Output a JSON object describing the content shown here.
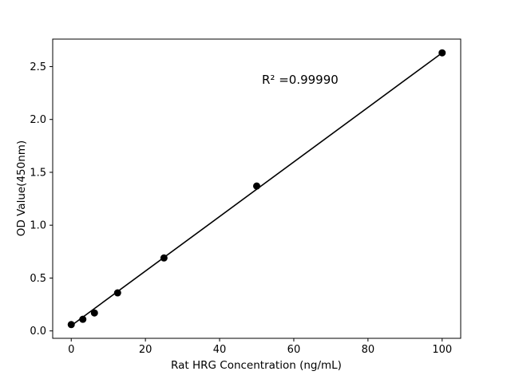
{
  "chart_data": {
    "type": "scatter",
    "title": "",
    "xlabel": "Rat HRG Concentration (ng/mL)",
    "ylabel": "OD Value(450nm)",
    "annotation": "R² =0.99990",
    "x": [
      0,
      3.125,
      6.25,
      12.5,
      25,
      50,
      100
    ],
    "y": [
      0.06,
      0.11,
      0.17,
      0.36,
      0.69,
      1.37,
      2.63
    ],
    "fit_line": {
      "x": [
        0,
        100
      ],
      "y": [
        0.05,
        2.63
      ]
    },
    "xlim": [
      -5,
      105
    ],
    "ylim": [
      -0.07,
      2.76
    ],
    "xticks": [
      0,
      20,
      40,
      60,
      80,
      100
    ],
    "yticks": [
      "0.0",
      "0.5",
      "1.0",
      "1.5",
      "2.0",
      "2.5"
    ],
    "grid": false,
    "legend": null,
    "point_color": "#000000",
    "line_color": "#000000",
    "background": "#ffffff"
  }
}
